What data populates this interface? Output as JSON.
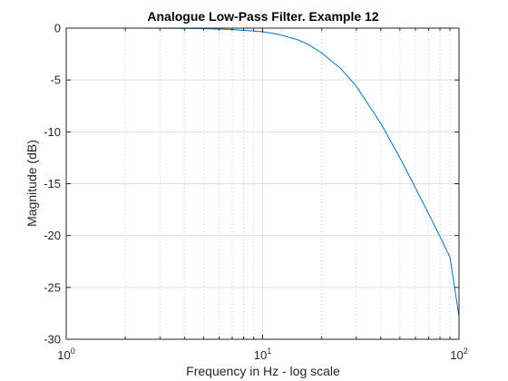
{
  "colors": {
    "series": "#0072bd",
    "axis": "#262626",
    "grid": "#dfdfdf",
    "minor_grid": "#c8c8c8"
  },
  "chart_data": {
    "type": "line",
    "title": "Analogue Low-Pass Filter. Example 12",
    "xlabel": "Frequency in Hz - log scale",
    "ylabel": "Magnitude (dB)",
    "xscale": "log",
    "xlim": [
      1,
      100
    ],
    "ylim": [
      -30,
      0
    ],
    "grid": true,
    "minor_grid": true,
    "legend": "none",
    "x_ticks": [
      1,
      10,
      100
    ],
    "x_tick_labels": [
      {
        "base": "10",
        "exp": "0"
      },
      {
        "base": "10",
        "exp": "1"
      },
      {
        "base": "10",
        "exp": "2"
      }
    ],
    "y_ticks": [
      0,
      -5,
      -10,
      -15,
      -20,
      -25,
      -30
    ],
    "y_tick_labels": [
      "0",
      "-5",
      "-10",
      "-15",
      "-20",
      "-25",
      "-30"
    ],
    "series": [
      {
        "x": [
          1,
          2,
          3,
          5,
          7,
          10,
          12,
          15,
          17,
          20,
          25,
          30,
          40,
          50,
          60,
          70,
          80,
          90,
          100
        ],
        "y": [
          0,
          0,
          -0.01,
          -0.05,
          -0.13,
          -0.35,
          -0.6,
          -1.1,
          -1.55,
          -2.4,
          -3.9,
          -5.6,
          -9.2,
          -12.5,
          -15.4,
          -17.9,
          -20.1,
          -22.1,
          -27.8
        ]
      }
    ]
  }
}
